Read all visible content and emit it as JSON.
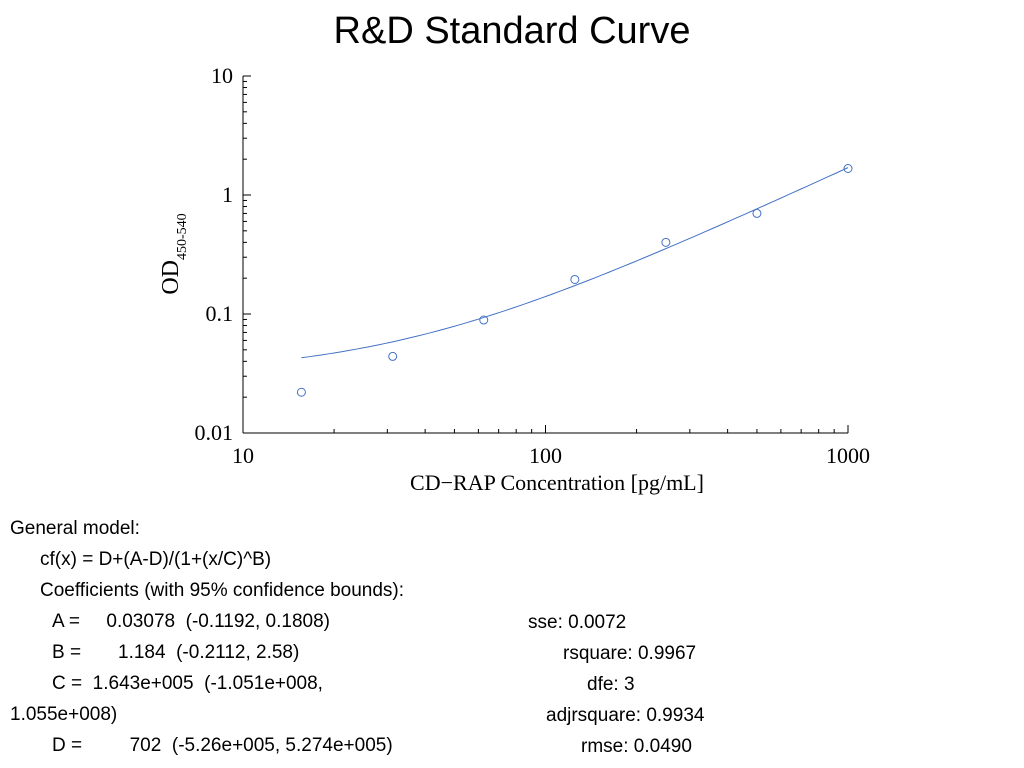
{
  "chart_data": {
    "type": "scatter",
    "title": "R&D Standard Curve",
    "xlabel": "CD−RAP Concentration [pg/mL]",
    "ylabel_main": "OD",
    "ylabel_sub": "450-540",
    "xscale": "log",
    "yscale": "log",
    "xlim": [
      10,
      1000
    ],
    "ylim": [
      0.01,
      10
    ],
    "xticks": [
      {
        "value": 10,
        "label": "10"
      },
      {
        "value": 100,
        "label": "100"
      },
      {
        "value": 1000,
        "label": "1000"
      }
    ],
    "yticks": [
      {
        "value": 0.01,
        "label": "0.01"
      },
      {
        "value": 0.1,
        "label": "0.1"
      },
      {
        "value": 1,
        "label": "1"
      },
      {
        "value": 10,
        "label": "10"
      }
    ],
    "grid": false,
    "colors": {
      "series": "#4472c4",
      "axis": "#000000"
    },
    "series": [
      {
        "kind": "points",
        "x": [
          15.6,
          31.25,
          62.5,
          125,
          250,
          500,
          1000
        ],
        "y": [
          0.022,
          0.044,
          0.089,
          0.195,
          0.4,
          0.7,
          1.67
        ]
      },
      {
        "kind": "fit",
        "model": {
          "A": 0.03078,
          "B": 1.184,
          "C": 164300,
          "D": 702
        },
        "x_range": [
          15.6,
          1000
        ]
      }
    ]
  },
  "fit_text": {
    "general_model": "General model:",
    "equation": "cf(x) = D+(A-D)/(1+(x/C)^B)",
    "coefficients_header": "Coefficients (with 95% confidence bounds):",
    "coef_A": "A =     0.03078  (-0.1192, 0.1808)",
    "coef_B": "B =       1.184  (-0.2112, 2.58)",
    "coef_C": "C =  1.643e+005  (-1.051e+008,",
    "coef_C_wrap": "1.055e+008)",
    "coef_D": "D =         702  (-5.26e+005, 5.274e+005)",
    "sse": "sse: 0.0072",
    "rsquare": "rsquare: 0.9967",
    "dfe": "dfe: 3",
    "adjrsquare": "adjrsquare: 0.9934",
    "rmse": "rmse: 0.0490"
  }
}
